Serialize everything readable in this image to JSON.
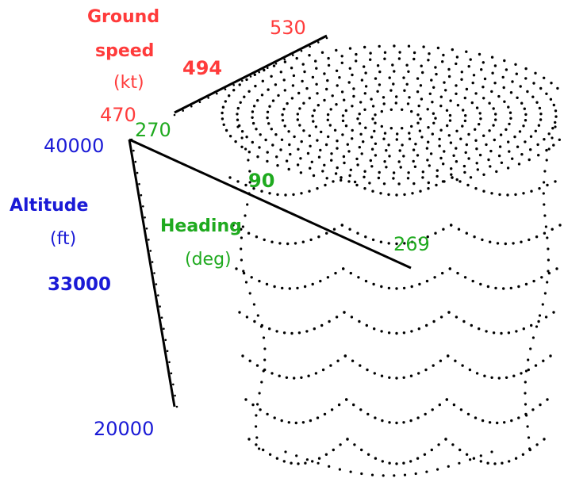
{
  "chart_data": {
    "type": "scatter",
    "title": "",
    "axes": {
      "altitude": {
        "label_line1": "Altitude",
        "label_line2": "(ft)",
        "color": "#1a1ad6",
        "max_label": "40000",
        "mid_label": "33000",
        "min_label": "20000",
        "range": [
          20000,
          40000
        ]
      },
      "ground_speed": {
        "label_line1": "Ground",
        "label_line2": "speed",
        "label_line3": "(kt)",
        "color": "#ff3b3b",
        "min_label": "470",
        "mid_label": "494",
        "max_label": "530",
        "range": [
          470,
          530
        ]
      },
      "heading": {
        "label_line1": "Heading",
        "label_line2": "(deg)",
        "color": "#1faa1f",
        "start_label": "270",
        "mid_label": "90",
        "end_label": "269",
        "range": [
          270,
          269
        ]
      }
    },
    "point_color": "#000000",
    "description_of_points": "3D scatter of flight states: heading sweeps full circle, altitude descending in stepped arcs, dense cap at high ground speed"
  }
}
